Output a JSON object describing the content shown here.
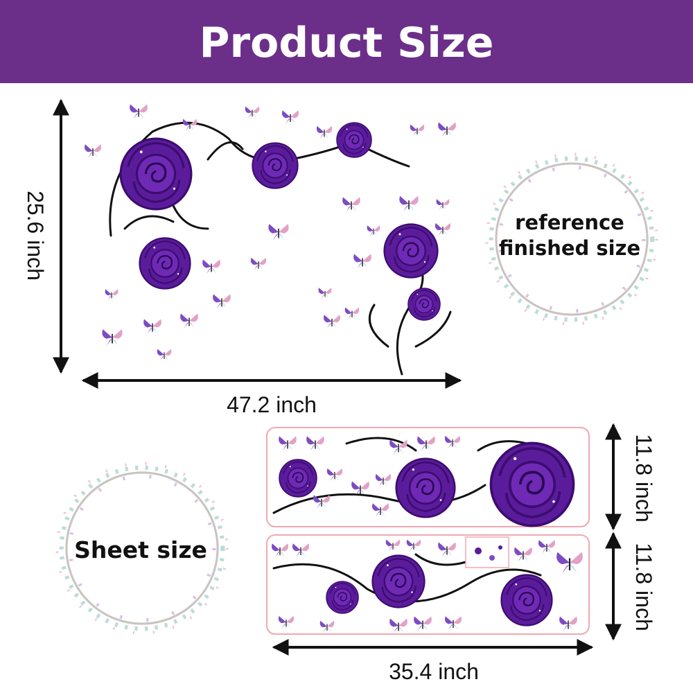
{
  "header": {
    "title": "Product Size"
  },
  "finished": {
    "height": "25.6 inch",
    "width": "47.2 inch"
  },
  "reference_badge": {
    "lines": [
      "reference",
      "finished size"
    ]
  },
  "sheet_badge": {
    "label": "Sheet size"
  },
  "sheets": {
    "heights": [
      "11.8 inch",
      "11.8 inch"
    ],
    "width": "35.4 inch"
  }
}
